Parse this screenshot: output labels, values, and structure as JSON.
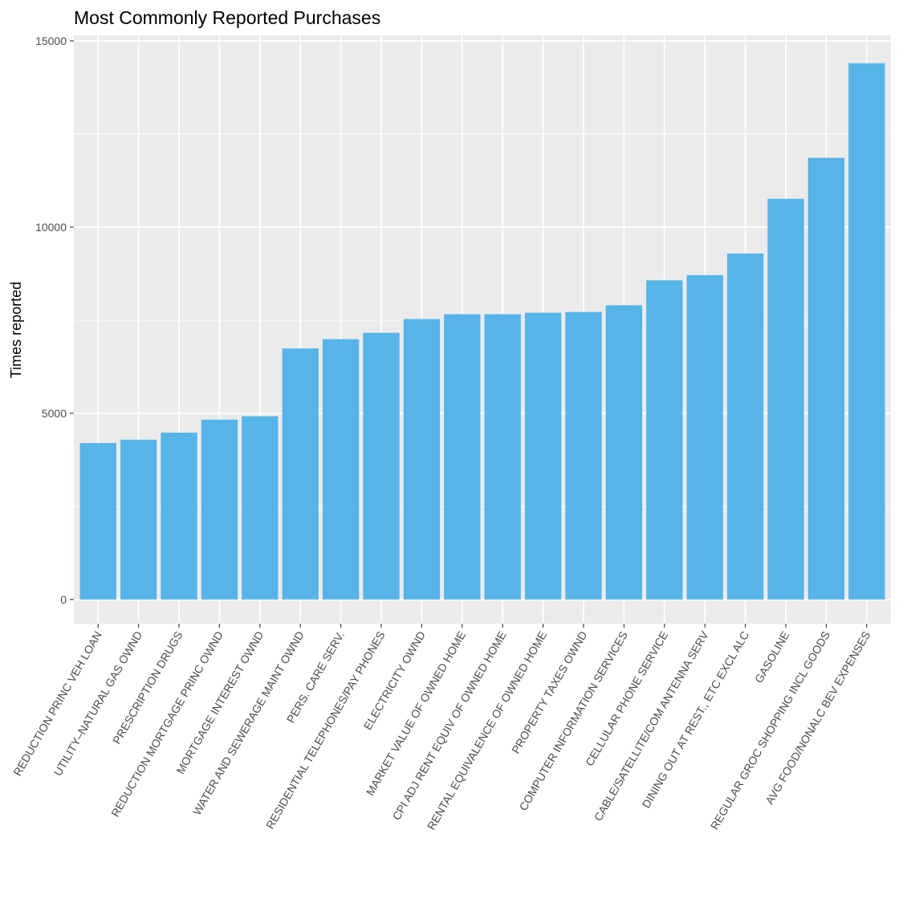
{
  "chart_data": {
    "type": "bar",
    "title": "Most Commonly Reported Purchases",
    "xlabel": "",
    "ylabel": "Times reported",
    "ylim": [
      -650,
      15150
    ],
    "yticks": [
      0,
      5000,
      10000,
      15000
    ],
    "grid": true,
    "bar_color": "#56B4E9",
    "panel_color": "#EBEBEB",
    "categories": [
      "REDUCTION PRINC VEH LOAN",
      "UTILITY–NATURAL GAS OWND",
      "PRESCRIPTION DRUGS",
      "REDUCTION MORTGAGE PRINC OWND",
      "MORTGAGE INTEREST OWND",
      "WATER AND SEWERAGE MAINT OWND",
      "PERS. CARE SERV.",
      "RESIDENTIAL TELEPHONES/PAY PHONES",
      "ELECTRICITY OWND",
      "MARKET VALUE OF OWNED HOME",
      "CPI ADJ RENT EQUIV OF OWNED HOME",
      "RENTAL EQUIVALENCE OF OWNED HOME",
      "PROPERTY TAXES OWND",
      "COMPUTER INFORMATION SERVICES",
      "CELLULAR PHONE SERVICE",
      "CABLE/SATELLITE/COM ANTENNA SERV",
      "DINING OUT AT REST., ETC EXCL ALC",
      "GASOLINE",
      "REGULAR GROC SHOPPING INCL GOODS",
      "AVG FOOD/NONALC BEV EXPENSES"
    ],
    "values": [
      4200,
      4290,
      4480,
      4830,
      4920,
      6740,
      6990,
      7160,
      7530,
      7660,
      7660,
      7700,
      7720,
      7900,
      8570,
      8710,
      9290,
      10760,
      11860,
      14400
    ]
  }
}
